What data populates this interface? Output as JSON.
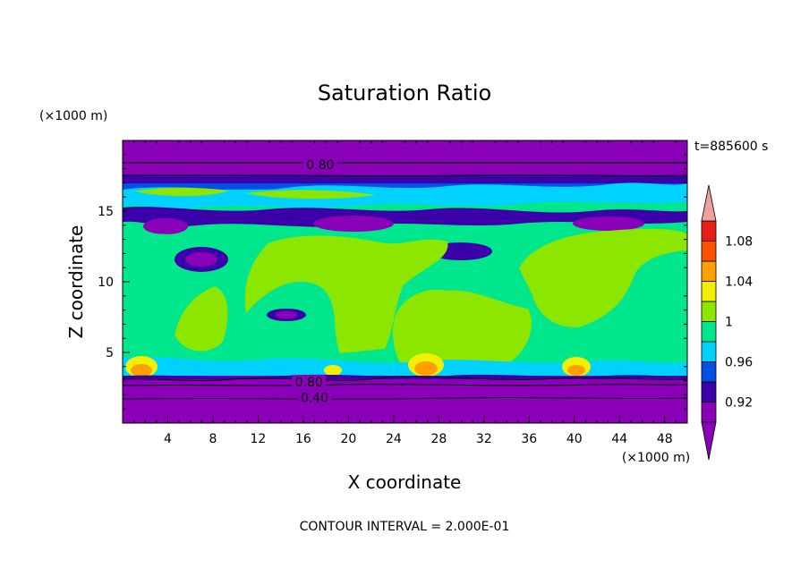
{
  "chart_data": {
    "type": "heatmap",
    "title": "Saturation Ratio",
    "xlabel": "X coordinate",
    "ylabel": "Z coordinate",
    "x_unit": "(×1000 m)",
    "y_unit": "(×1000 m)",
    "time_label": "t=885600 s",
    "footer": "CONTOUR INTERVAL = 2.000E-01",
    "xlim": [
      0,
      50
    ],
    "ylim": [
      0,
      20
    ],
    "x_ticks": [
      4,
      8,
      12,
      16,
      20,
      24,
      28,
      32,
      36,
      40,
      44,
      48
    ],
    "y_ticks": [
      5,
      10,
      15
    ],
    "contour_labels": [
      {
        "text": "0.80",
        "x": 17.5,
        "z": 18.3
      },
      {
        "text": "0.80",
        "x": 16.5,
        "z": 2.9
      },
      {
        "text": "0.40",
        "x": 17.0,
        "z": 1.8
      }
    ],
    "colorbar": {
      "tick_labels": [
        "1.08",
        "1.04",
        "1",
        "0.96",
        "0.92"
      ],
      "levels": [
        0.92,
        0.94,
        0.96,
        0.98,
        1.0,
        1.02,
        1.04,
        1.06,
        1.08,
        1.1
      ],
      "colors": [
        "#8a00b8",
        "#3c00a8",
        "#0050e6",
        "#00d2ff",
        "#00e68c",
        "#8ce600",
        "#f0f000",
        "#ffa000",
        "#ff5000",
        "#e61e14",
        "#f0a0a0"
      ],
      "under_color": "#8a00b8",
      "over_color": "#f0a0a0"
    }
  }
}
